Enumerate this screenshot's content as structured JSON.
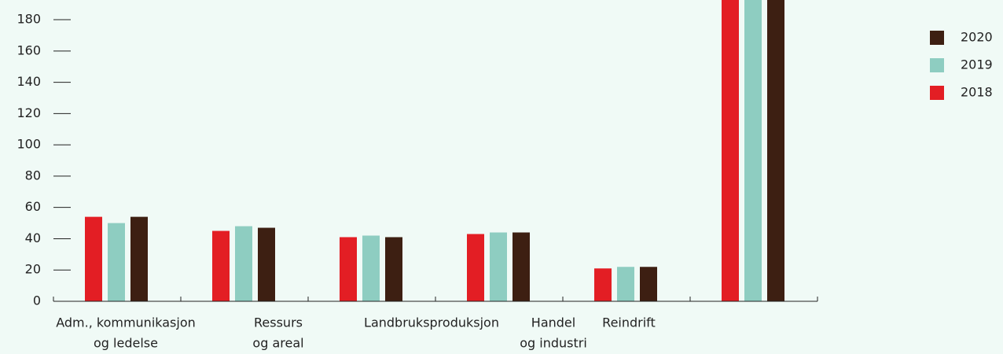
{
  "chart_data": {
    "type": "bar",
    "categories": [
      [
        "Adm., kommunikasjon",
        "og ledelse"
      ],
      [
        "Ressurs",
        "og areal"
      ],
      [
        "Landbruksproduksjon"
      ],
      [
        "Handel",
        "og industri"
      ],
      [
        "Reindrift"
      ],
      null
    ],
    "series": [
      {
        "name": "2018",
        "color": "#e31e24",
        "values": [
          54,
          45,
          41,
          43,
          21,
          195
        ]
      },
      {
        "name": "2019",
        "color": "#8ecdc1",
        "values": [
          50,
          48,
          42,
          44,
          22,
          195
        ]
      },
      {
        "name": "2020",
        "color": "#3d1f12",
        "values": [
          54,
          47,
          41,
          44,
          22,
          195
        ]
      }
    ],
    "ylim": [
      0,
      192.6
    ],
    "yticks": [
      0,
      20,
      40,
      60,
      80,
      100,
      120,
      140,
      160,
      180
    ],
    "legend": "right"
  }
}
